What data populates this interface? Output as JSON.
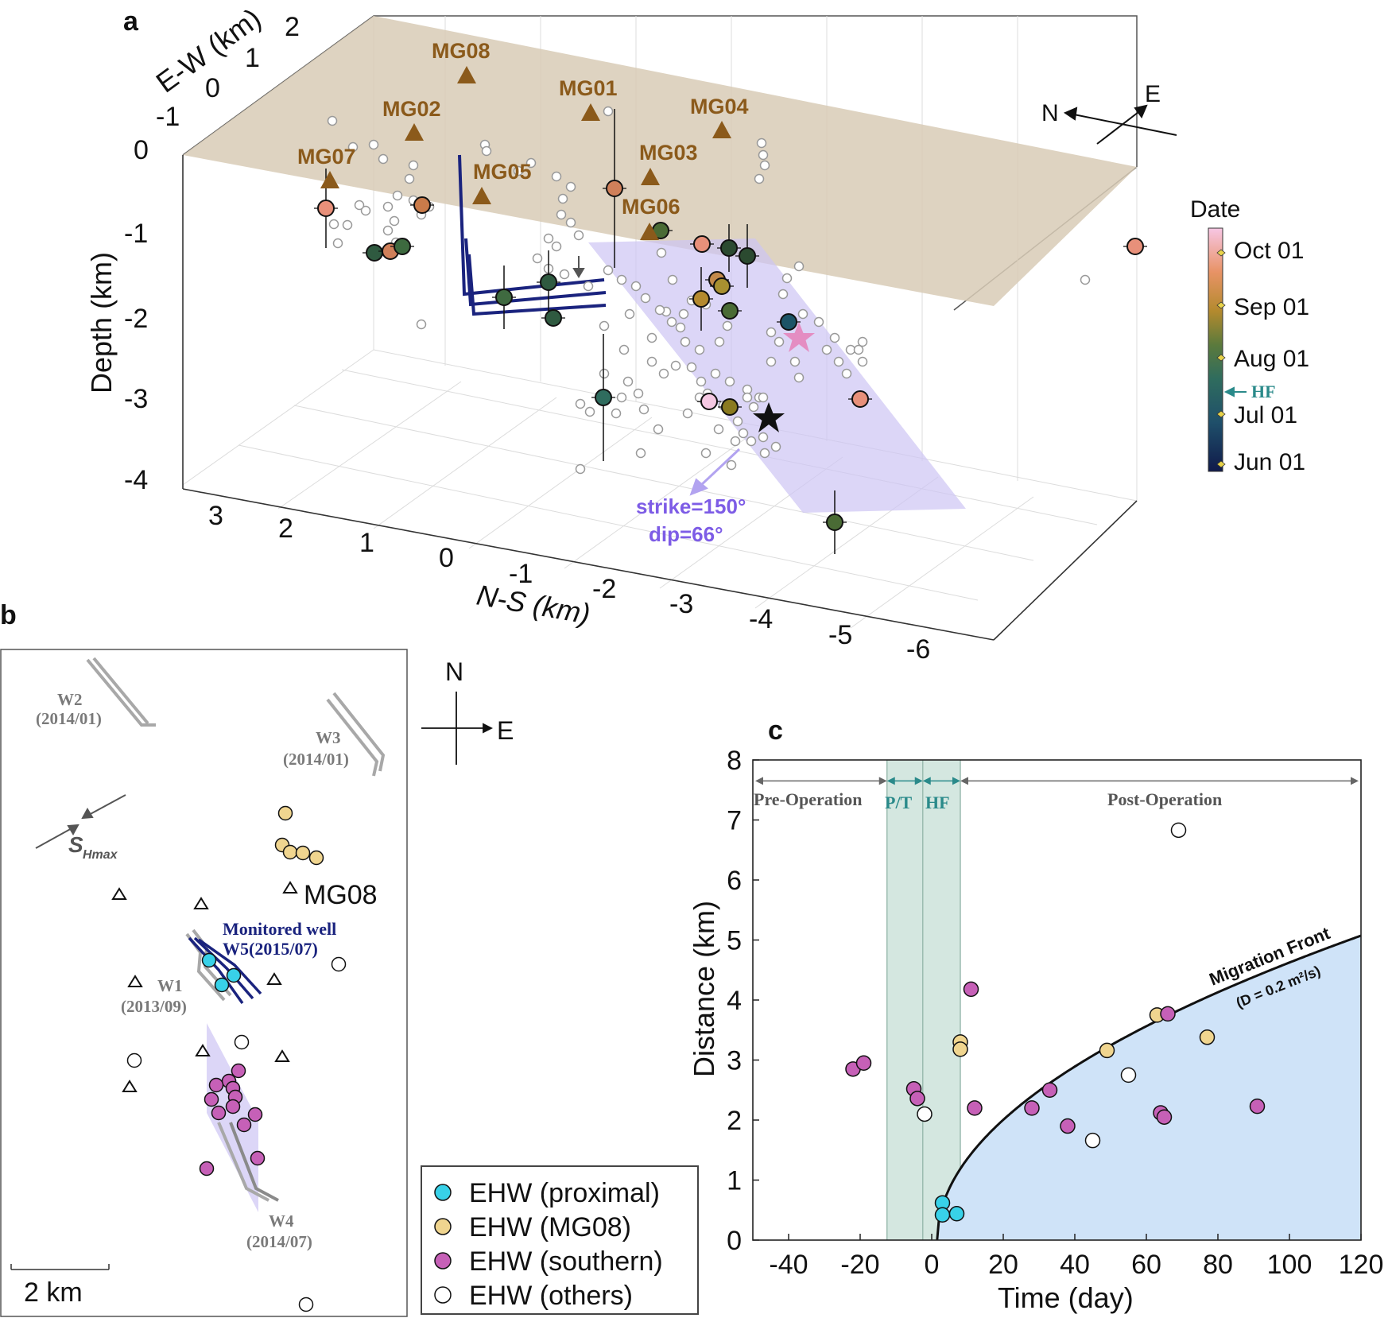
{
  "colors": {
    "proximal": "#38d1e8",
    "mg08": "#f0d58f",
    "southern": "#c660b7",
    "others": "#ffffff",
    "migration_fill": "#cfe3f8",
    "phase_band": "#c6dfd6",
    "surface": "#d8cbb6",
    "fault_plane": "#cdc5f4",
    "station": "#8b5a1b",
    "well_navy": "#1a237e",
    "well_gray": "#a8a8a8",
    "strike_text": "#7d5ce6"
  },
  "panel_a": {
    "letter": "a",
    "ew_title": "E-W (km)",
    "ew_ticks": [
      "2",
      "1",
      "0",
      "-1"
    ],
    "depth_title": "Depth (km)",
    "depth_ticks": [
      "0",
      "-1",
      "-2",
      "-3",
      "-4"
    ],
    "ns_title": "N-S (km)",
    "ns_ticks": [
      "3",
      "2",
      "1",
      "0",
      "-1",
      "-2",
      "-3",
      "-4",
      "-5",
      "-6"
    ],
    "stations": [
      {
        "name": "MG08"
      },
      {
        "name": "MG01"
      },
      {
        "name": "MG02"
      },
      {
        "name": "MG04"
      },
      {
        "name": "MG07"
      },
      {
        "name": "MG03"
      },
      {
        "name": "MG05"
      },
      {
        "name": "MG06"
      }
    ],
    "compass": {
      "n": "N",
      "e": "E"
    },
    "strike_label": "strike=150°",
    "dip_label": "dip=66°",
    "colorbar": {
      "title": "Date",
      "ticks": [
        "Oct 01",
        "Sep 01",
        "Aug 01",
        "Jul 01",
        "Jun 01"
      ],
      "hf_label": "HF"
    }
  },
  "panel_b": {
    "letter": "b",
    "wells": [
      {
        "name": "W2",
        "date": "(2014/01)"
      },
      {
        "name": "W3",
        "date": "(2014/01)"
      },
      {
        "name": "W1",
        "date": "(2013/09)"
      },
      {
        "name": "W4",
        "date": "(2014/07)"
      }
    ],
    "monitored_line1": "Monitored well",
    "monitored_line2": "W5(2015/07)",
    "station_label": "MG08",
    "shmax_s": "S",
    "shmax_sub": "Hmax",
    "compass": {
      "n": "N",
      "e": "E"
    },
    "scale_label": "2 km",
    "legend": [
      {
        "key": "proximal",
        "label": "EHW (proximal)"
      },
      {
        "key": "mg08",
        "label": "EHW (MG08)"
      },
      {
        "key": "southern",
        "label": "EHW (southern)"
      },
      {
        "key": "others",
        "label": "EHW (others)"
      }
    ]
  },
  "panel_c": {
    "letter": "c",
    "phases": {
      "pre": "Pre-Operation",
      "pt": "P/T",
      "hf": "HF",
      "post": "Post-Operation"
    },
    "front_label": "Migration Front",
    "front_diffusivity": "(D = 0.2 m²/s)"
  },
  "chart_data": {
    "type": "scatter",
    "title": "",
    "xlabel": "Time (day)",
    "ylabel": "Distance (km)",
    "xlim": [
      -50,
      120
    ],
    "ylim": [
      0,
      8
    ],
    "xticks": [
      -40,
      -20,
      0,
      20,
      40,
      60,
      80,
      100,
      120
    ],
    "yticks": [
      0,
      1,
      2,
      3,
      4,
      5,
      6,
      7,
      8
    ],
    "phase_boundaries_day": {
      "pt_start": -12.5,
      "hf_start": -2.5,
      "hf_end": 8
    },
    "migration_front": {
      "diffusivity_m2_per_s": 0.2,
      "formula": "r = sqrt(4*pi*D*t)",
      "onset_day": 1.5
    },
    "series": [
      {
        "name": "EHW (proximal)",
        "key": "proximal",
        "x": [
          3,
          3,
          7
        ],
        "y": [
          0.62,
          0.42,
          0.44
        ]
      },
      {
        "name": "EHW (MG08)",
        "key": "mg08",
        "x": [
          8,
          8,
          49,
          63,
          77
        ],
        "y": [
          3.3,
          3.18,
          3.16,
          3.75,
          3.38
        ]
      },
      {
        "name": "EHW (southern)",
        "key": "southern",
        "x": [
          -22,
          -19,
          -5,
          -4,
          11,
          12,
          28,
          33,
          38,
          64,
          65,
          66,
          91
        ],
        "y": [
          2.85,
          2.95,
          2.52,
          2.36,
          4.18,
          2.2,
          2.2,
          2.5,
          1.9,
          2.12,
          2.05,
          3.77,
          2.23
        ]
      },
      {
        "name": "EHW (others)",
        "key": "others",
        "x": [
          -2,
          45,
          55,
          69
        ],
        "y": [
          2.1,
          1.66,
          2.75,
          6.83
        ]
      }
    ]
  }
}
